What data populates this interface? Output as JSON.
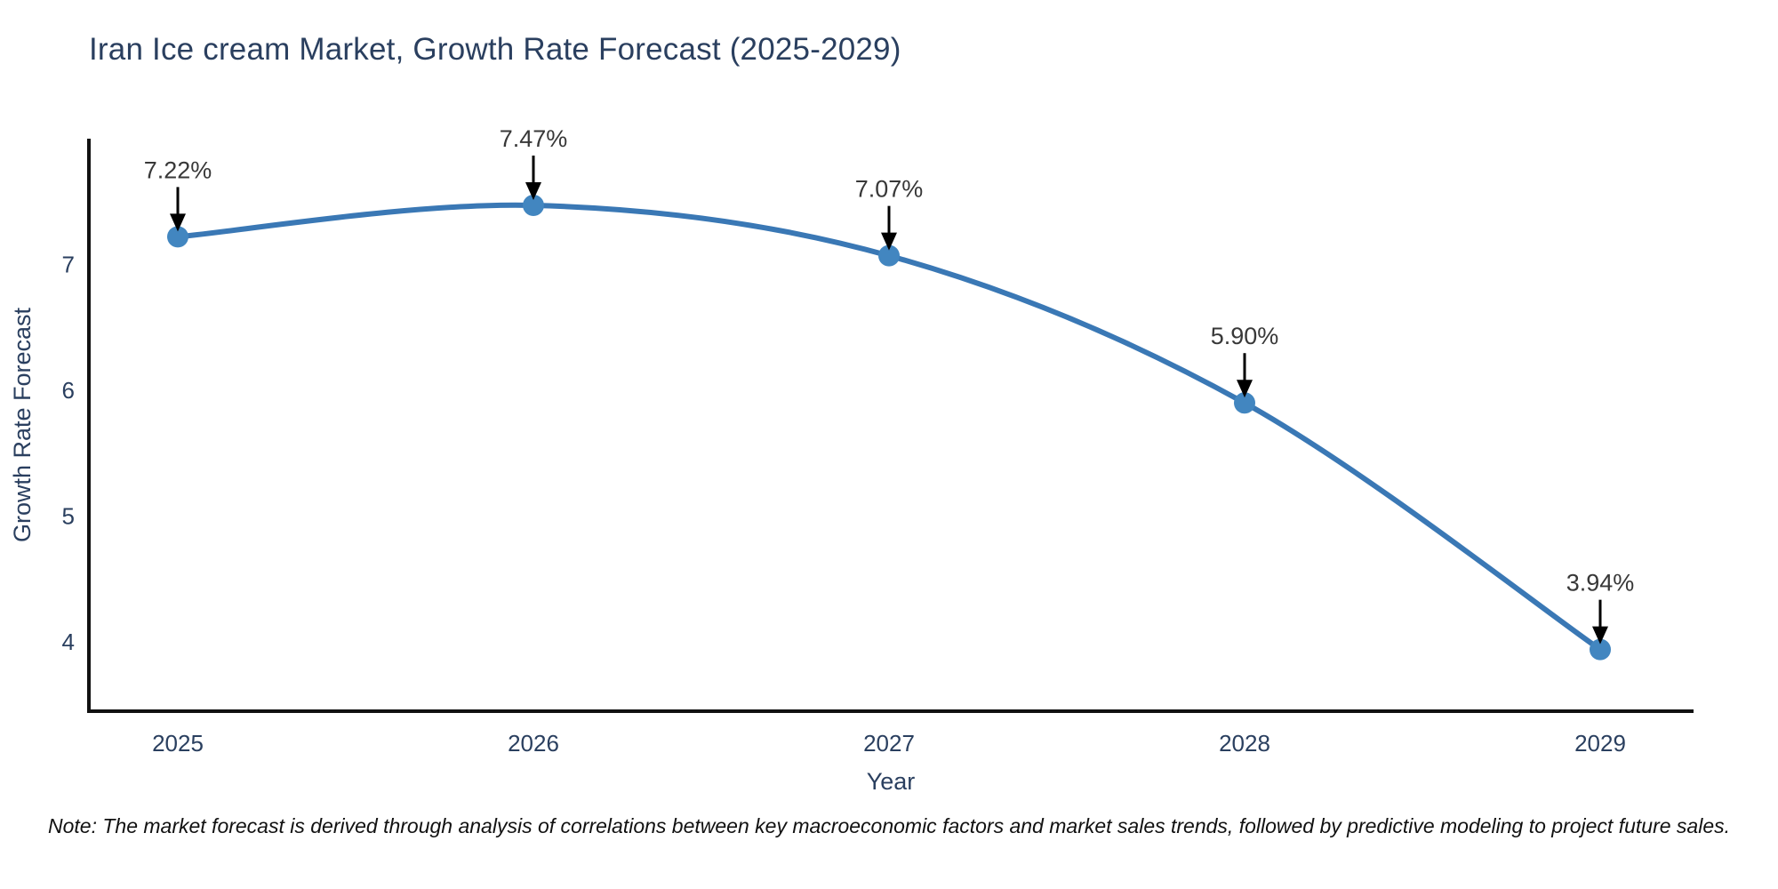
{
  "chart_data": {
    "type": "line",
    "title": "Iran Ice cream Market, Growth Rate Forecast (2025-2029)",
    "xlabel": "Year",
    "ylabel": "Growth Rate Forecast",
    "categories": [
      "2025",
      "2026",
      "2027",
      "2028",
      "2029"
    ],
    "series": [
      {
        "name": "Growth Rate Forecast",
        "values": [
          7.22,
          7.47,
          7.07,
          5.9,
          3.94
        ]
      }
    ],
    "point_labels": [
      "7.22%",
      "7.47%",
      "7.07%",
      "5.90%",
      "3.94%"
    ],
    "yticks": [
      4,
      5,
      6,
      7
    ],
    "ylim": [
      3.45,
      8.0
    ],
    "line_shape": "spline",
    "grid": false,
    "legend_position": "none",
    "note": "Note: The market forecast is derived through analysis of correlations between key macroeconomic factors and market sales trends, followed by predictive modeling to project future sales.",
    "colors": {
      "line": "#3a78b5",
      "marker": "#4286c0",
      "axis": "#111111",
      "title": "#2a3f5f",
      "tick": "#2a3f5f",
      "point_label": "#383838",
      "arrow": "#000000",
      "note": "#111111",
      "background": "#ffffff"
    }
  }
}
